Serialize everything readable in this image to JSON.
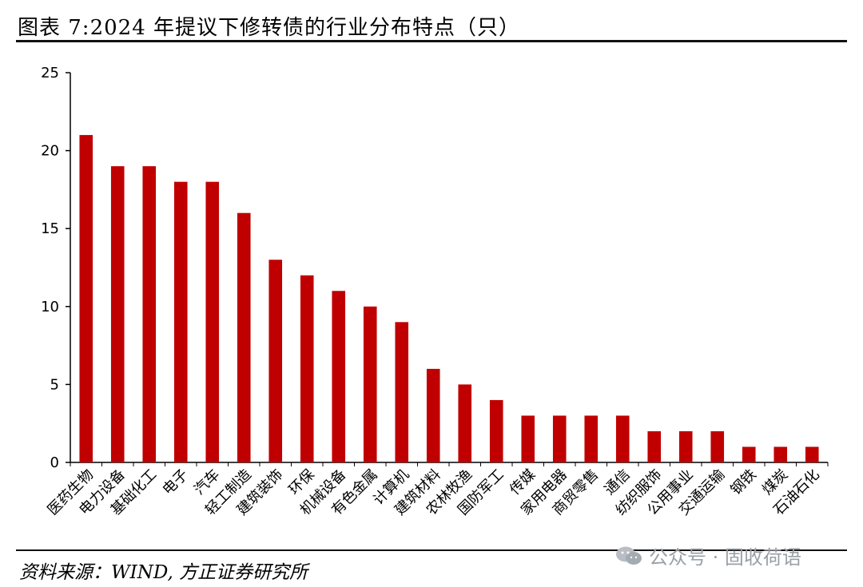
{
  "title": "图表 7:2024 年提议下修转债的行业分布特点（只）",
  "source": "资料来源：WIND, 方正证券研究所",
  "watermark": "公众号 · 固收荷语",
  "colors": {
    "bar": "#c00000",
    "axis": "#000000"
  },
  "icons": {
    "watermark_logo": "wechat-icon"
  },
  "chart_data": {
    "type": "bar",
    "title": "图表 7:2024 年提议下修转债的行业分布特点（只）",
    "xlabel": "",
    "ylabel": "",
    "ylim": [
      0,
      25
    ],
    "yticks": [
      0,
      5,
      10,
      15,
      20,
      25
    ],
    "grid": false,
    "legend": "none",
    "categories": [
      "医药生物",
      "电力设备",
      "基础化工",
      "电子",
      "汽车",
      "轻工制造",
      "建筑装饰",
      "环保",
      "机械设备",
      "有色金属",
      "计算机",
      "建筑材料",
      "农林牧渔",
      "国防军工",
      "传媒",
      "家用电器",
      "商贸零售",
      "通信",
      "纺织服饰",
      "公用事业",
      "交通运输",
      "钢铁",
      "煤炭",
      "石油石化"
    ],
    "values": [
      21,
      19,
      19,
      18,
      18,
      16,
      13,
      12,
      11,
      10,
      9,
      6,
      5,
      4,
      3,
      3,
      3,
      3,
      2,
      2,
      2,
      1,
      1,
      1
    ]
  }
}
